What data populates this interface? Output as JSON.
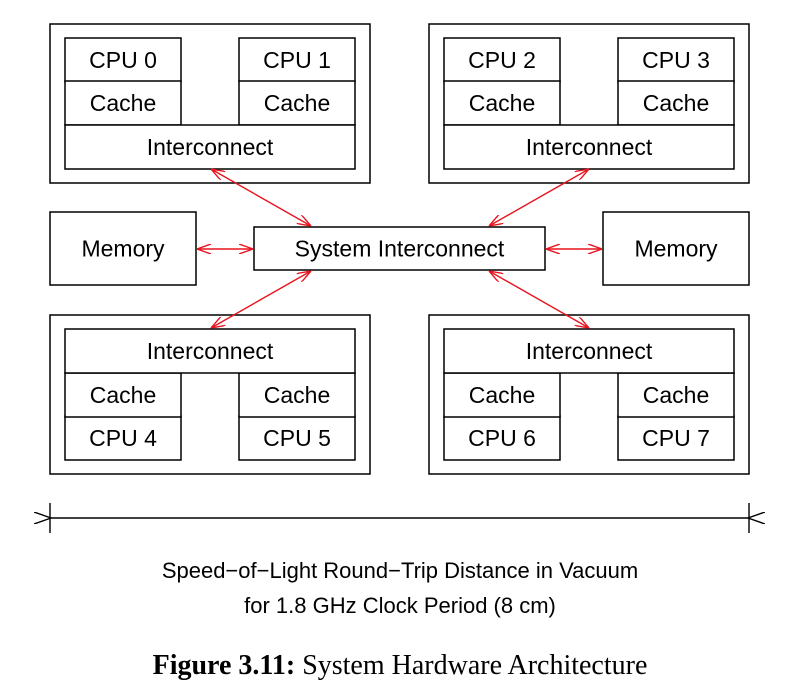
{
  "nodes": {
    "tl": {
      "cpu_a": "CPU 0",
      "cache_a": "Cache",
      "cpu_b": "CPU 1",
      "cache_b": "Cache",
      "interconnect": "Interconnect"
    },
    "tr": {
      "cpu_a": "CPU 2",
      "cache_a": "Cache",
      "cpu_b": "CPU 3",
      "cache_b": "Cache",
      "interconnect": "Interconnect"
    },
    "bl": {
      "cpu_a": "CPU 4",
      "cache_a": "Cache",
      "cpu_b": "CPU 5",
      "cache_b": "Cache",
      "interconnect": "Interconnect"
    },
    "br": {
      "cpu_a": "CPU 6",
      "cache_a": "Cache",
      "cpu_b": "CPU 7",
      "cache_b": "Cache",
      "interconnect": "Interconnect"
    },
    "memory_left": "Memory",
    "memory_right": "Memory",
    "system_interconnect": "System Interconnect"
  },
  "arrow_color": "#e8141e",
  "distance_caption": {
    "line1": "Speed−of−Light Round−Trip Distance in Vacuum",
    "line2": "for 1.8 GHz Clock Period (8 cm)"
  },
  "figure_caption": {
    "label": "Figure 3.11:",
    "title": " System Hardware Architecture"
  }
}
